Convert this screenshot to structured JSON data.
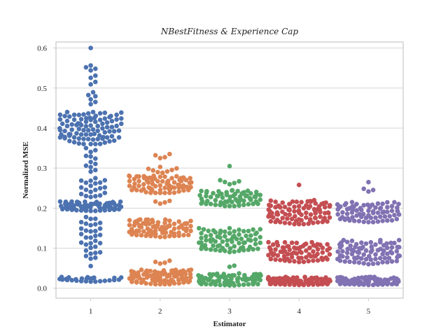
{
  "chart_data": {
    "type": "swarm",
    "title": "NBestFitness & Experience Cap",
    "xlabel": "Estimator",
    "ylabel": "Normalized MSE",
    "categories": [
      "1",
      "2",
      "3",
      "4",
      "5"
    ],
    "ylim": [
      -0.025,
      0.615
    ],
    "yticks": [
      0.0,
      0.1,
      0.2,
      0.3,
      0.4,
      0.5,
      0.6
    ],
    "ytick_labels": [
      "0.0",
      "0.1",
      "0.2",
      "0.3",
      "0.4",
      "0.5",
      "0.6"
    ],
    "grid": true,
    "colors": {
      "1": "#4c72b0",
      "2": "#dd8452",
      "3": "#55a868",
      "4": "#c44e52",
      "5": "#8172b3"
    },
    "series": [
      {
        "category": "1",
        "clusters": [
          {
            "center": 0.6,
            "spread": 0.0,
            "count": 1
          },
          {
            "center": 0.55,
            "spread": 0.008,
            "count": 4
          },
          {
            "center": 0.52,
            "spread": 0.015,
            "count": 4
          },
          {
            "center": 0.475,
            "spread": 0.018,
            "count": 6
          },
          {
            "center": 0.4,
            "spread": 0.04,
            "count": 95
          },
          {
            "center": 0.32,
            "spread": 0.03,
            "count": 12
          },
          {
            "center": 0.25,
            "spread": 0.025,
            "count": 20
          },
          {
            "center": 0.205,
            "spread": 0.012,
            "count": 75
          },
          {
            "center": 0.145,
            "spread": 0.035,
            "count": 22
          },
          {
            "center": 0.09,
            "spread": 0.02,
            "count": 10
          },
          {
            "center": 0.055,
            "spread": 0.003,
            "count": 1
          },
          {
            "center": 0.022,
            "spread": 0.006,
            "count": 26
          }
        ]
      },
      {
        "category": "2",
        "clusters": [
          {
            "center": 0.33,
            "spread": 0.008,
            "count": 4
          },
          {
            "center": 0.295,
            "spread": 0.008,
            "count": 8
          },
          {
            "center": 0.26,
            "spread": 0.022,
            "count": 80
          },
          {
            "center": 0.215,
            "spread": 0.005,
            "count": 4
          },
          {
            "center": 0.15,
            "spread": 0.022,
            "count": 85
          },
          {
            "center": 0.065,
            "spread": 0.005,
            "count": 4
          },
          {
            "center": 0.028,
            "spread": 0.018,
            "count": 100
          }
        ]
      },
      {
        "category": "3",
        "clusters": [
          {
            "center": 0.305,
            "spread": 0.0,
            "count": 1
          },
          {
            "center": 0.265,
            "spread": 0.006,
            "count": 5
          },
          {
            "center": 0.225,
            "spread": 0.02,
            "count": 70
          },
          {
            "center": 0.12,
            "spread": 0.03,
            "count": 80
          },
          {
            "center": 0.055,
            "spread": 0.003,
            "count": 2
          },
          {
            "center": 0.022,
            "spread": 0.015,
            "count": 90
          }
        ]
      },
      {
        "category": "4",
        "clusters": [
          {
            "center": 0.258,
            "spread": 0.0,
            "count": 1
          },
          {
            "center": 0.19,
            "spread": 0.03,
            "count": 95
          },
          {
            "center": 0.09,
            "spread": 0.025,
            "count": 80
          },
          {
            "center": 0.018,
            "spread": 0.01,
            "count": 90
          }
        ]
      },
      {
        "category": "5",
        "clusters": [
          {
            "center": 0.265,
            "spread": 0.0,
            "count": 1
          },
          {
            "center": 0.245,
            "spread": 0.005,
            "count": 3
          },
          {
            "center": 0.19,
            "spread": 0.025,
            "count": 75
          },
          {
            "center": 0.09,
            "spread": 0.03,
            "count": 85
          },
          {
            "center": 0.018,
            "spread": 0.01,
            "count": 90
          }
        ]
      }
    ]
  }
}
